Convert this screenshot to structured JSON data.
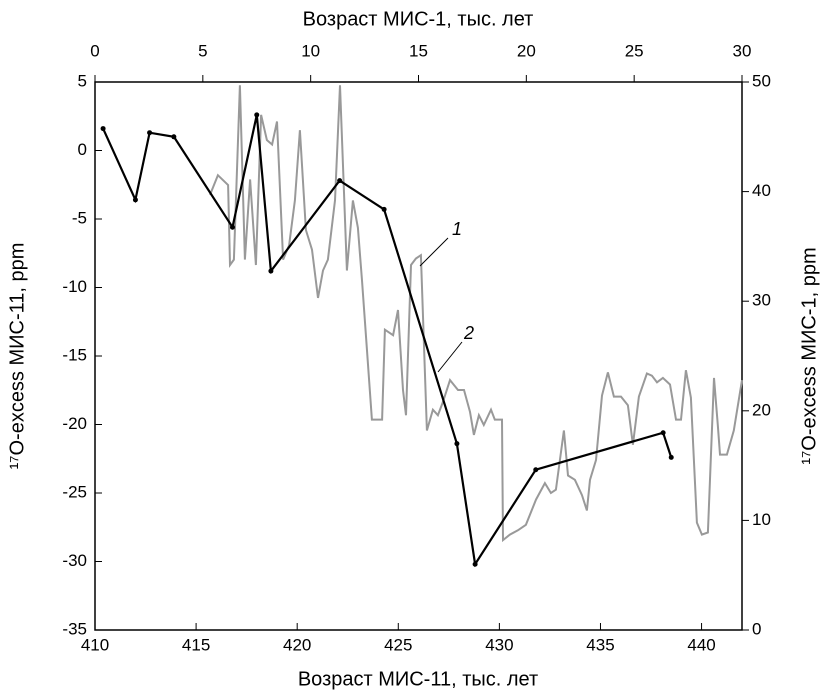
{
  "chart_data": {
    "type": "line",
    "xlabel": "Возраст МИС-11, тыс. лет",
    "x2label": "Возраст МИС-1, тыс. лет",
    "ylabel": "¹⁷O-excess МИС-11, ppm",
    "y2label": "¹⁷O-excess МИС-1, ppm",
    "xlim": [
      410,
      442
    ],
    "xticks": [
      410,
      415,
      420,
      425,
      430,
      435,
      440
    ],
    "x2lim": [
      0,
      30
    ],
    "x2ticks": [
      0,
      5,
      10,
      15,
      20,
      25,
      30
    ],
    "ylim": [
      -35,
      5
    ],
    "yticks": [
      -35,
      -30,
      -25,
      -20,
      -15,
      -10,
      -5,
      0,
      5
    ],
    "y2lim": [
      0,
      50
    ],
    "y2ticks": [
      0,
      10,
      20,
      30,
      40,
      50
    ],
    "annotations": [
      "1",
      "2"
    ],
    "series": [
      {
        "color": "#999999",
        "axis": "y2",
        "x": [
          5.33,
          5.7,
          6.17,
          6.26,
          6.44,
          6.72,
          6.95,
          7.19,
          7.46,
          7.7,
          7.97,
          8.21,
          8.44,
          8.72,
          9.0,
          9.27,
          9.5,
          9.78,
          10.06,
          10.34,
          10.57,
          10.8,
          11.13,
          11.36,
          11.68,
          11.96,
          12.19,
          12.38,
          12.61,
          12.84,
          13.07,
          13.31,
          13.44,
          13.82,
          14.05,
          14.28,
          14.42,
          14.65,
          14.88,
          15.11,
          15.39,
          15.67,
          15.9,
          16.13,
          16.46,
          16.83,
          17.11,
          17.39,
          17.57,
          17.8,
          18.03,
          18.36,
          18.54,
          18.87,
          18.92,
          19.24,
          19.61,
          19.98,
          20.45,
          20.86,
          21.14,
          21.37,
          21.74,
          21.93,
          22.25,
          22.58,
          22.81,
          22.95,
          23.23,
          23.51,
          23.78,
          24.06,
          24.39,
          24.71,
          24.94,
          25.22,
          25.59,
          25.82,
          26.06,
          26.33,
          26.66,
          26.94,
          27.17,
          27.4,
          27.63,
          27.91,
          28.14,
          28.42,
          28.7,
          28.88,
          28.98,
          29.3,
          29.62,
          30.0
        ],
        "values": [
          39.7,
          41.5,
          40.6,
          33.3,
          33.8,
          49.7,
          33.8,
          41.1,
          33.3,
          47.0,
          44.7,
          44.3,
          46.4,
          33.8,
          35.1,
          39.2,
          45.6,
          36.5,
          34.7,
          30.3,
          32.8,
          33.8,
          39.2,
          49.7,
          32.8,
          39.2,
          36.7,
          31.9,
          25.5,
          19.2,
          19.2,
          19.2,
          27.4,
          26.9,
          29.2,
          21.9,
          19.6,
          33.3,
          33.9,
          34.2,
          18.2,
          20.1,
          19.6,
          20.8,
          22.8,
          21.9,
          21.9,
          19.9,
          17.8,
          19.6,
          18.7,
          20.1,
          19.2,
          19.2,
          8.2,
          8.7,
          9.1,
          9.6,
          11.9,
          13.4,
          12.5,
          12.8,
          18.2,
          14.1,
          13.7,
          12.3,
          10.9,
          13.7,
          15.5,
          21.4,
          23.5,
          21.3,
          21.3,
          20.5,
          16.9,
          21.3,
          23.4,
          23.2,
          22.6,
          23.0,
          22.4,
          19.2,
          19.2,
          23.7,
          21.2,
          9.8,
          8.7,
          8.9,
          23.0,
          18.7,
          16.0,
          16.0,
          18.2,
          22.8
        ]
      },
      {
        "color": "#000000",
        "x": [
          410.4,
          412.0,
          412.7,
          413.9,
          416.8,
          418.0,
          418.7,
          422.1,
          424.3,
          427.9,
          428.8,
          431.8,
          438.1,
          438.5
        ],
        "values": [
          1.6,
          -3.6,
          1.3,
          1.0,
          -5.6,
          2.6,
          -8.8,
          -2.2,
          -4.3,
          -21.4,
          -30.2,
          -23.3,
          -20.6,
          -22.4
        ]
      }
    ]
  }
}
